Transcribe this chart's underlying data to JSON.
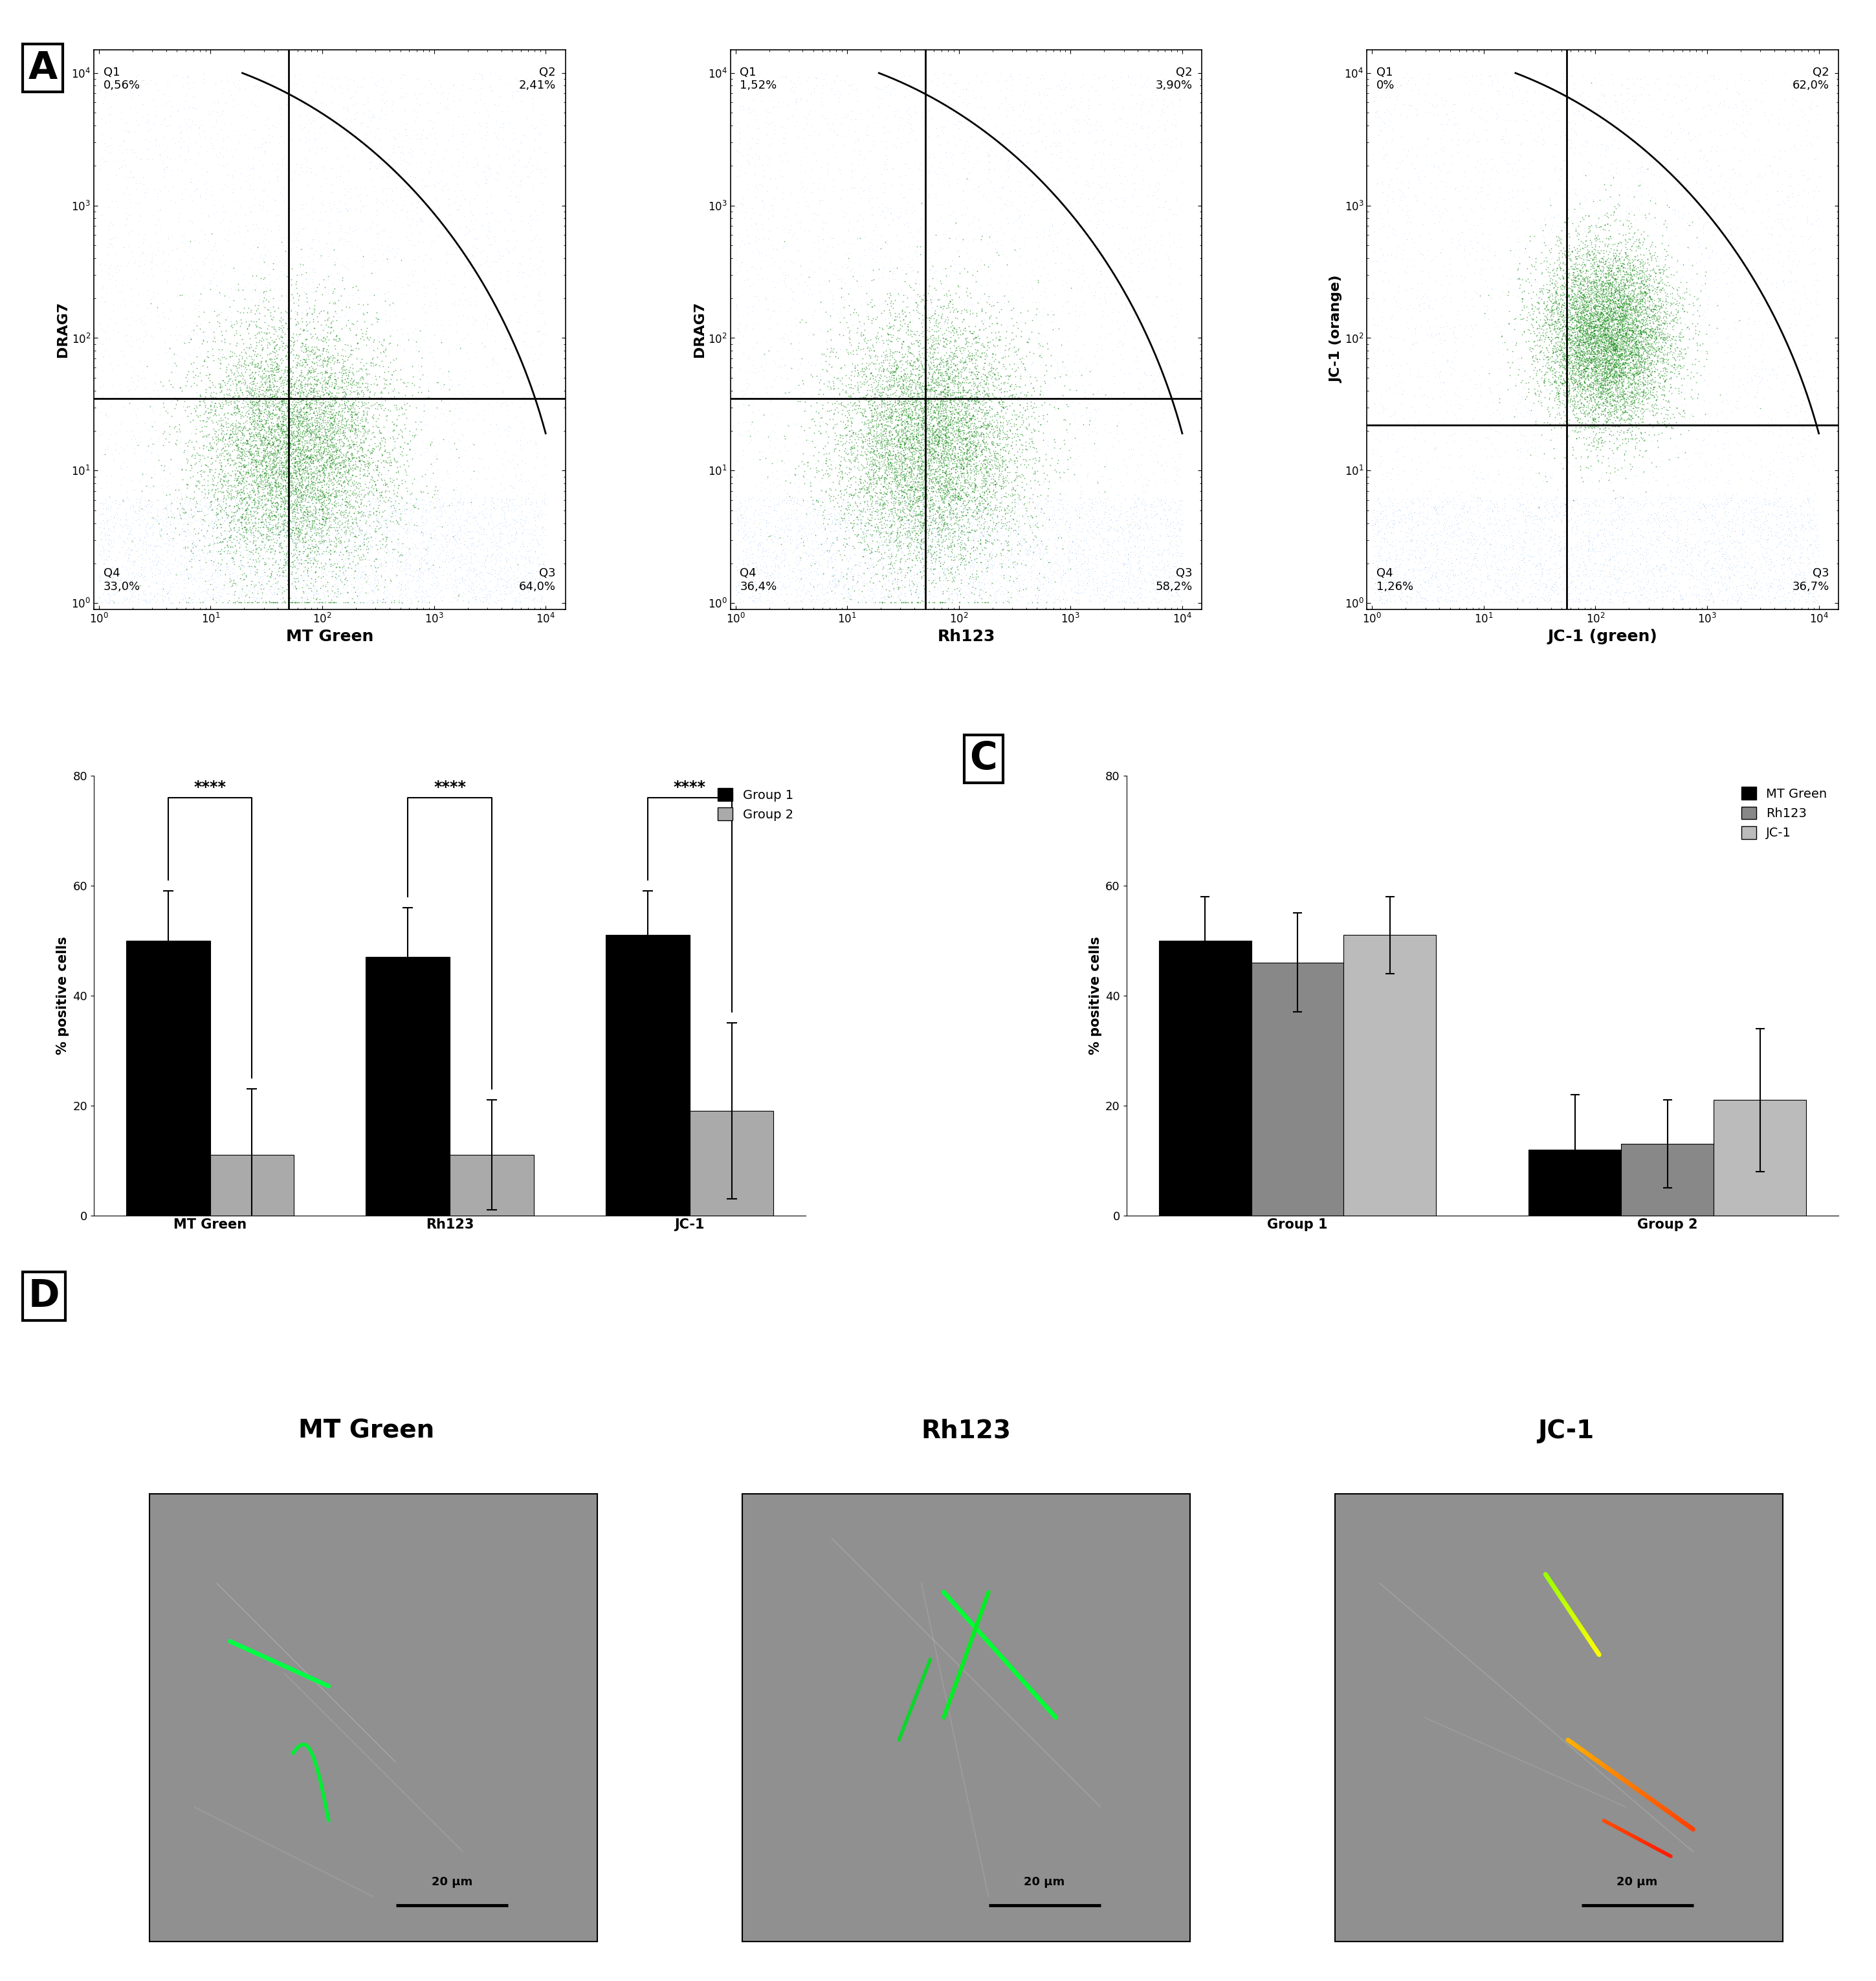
{
  "panel_A": {
    "plots": [
      {
        "xlabel": "MT Green",
        "ylabel": "DRAG7",
        "q1_label": "Q1\n0,56%",
        "q2_label": "Q2\n2,41%",
        "q3_label": "Q3\n64,0%",
        "q4_label": "Q4\n33,0%",
        "gate_vline": 50,
        "gate_hline": 35,
        "main_cluster_logx": 1.75,
        "main_cluster_logy": 1.15,
        "main_cluster_sx": 0.45,
        "main_cluster_sy": 0.5
      },
      {
        "xlabel": "Rh123",
        "ylabel": "DRAG7",
        "q1_label": "Q1\n1,52%",
        "q2_label": "Q2\n3,90%",
        "q3_label": "Q3\n58,2%",
        "q4_label": "Q4\n36,4%",
        "gate_vline": 50,
        "gate_hline": 35,
        "main_cluster_logx": 1.75,
        "main_cluster_logy": 1.2,
        "main_cluster_sx": 0.45,
        "main_cluster_sy": 0.5
      },
      {
        "xlabel": "JC-1 (green)",
        "ylabel": "JC-1 (orange)",
        "q1_label": "Q1\n0%",
        "q2_label": "Q2\n62,0%",
        "q3_label": "Q3\n36,7%",
        "q4_label": "Q4\n1,26%",
        "gate_vline": 55,
        "gate_hline": 22,
        "main_cluster_logx": 2.1,
        "main_cluster_logy": 2.0,
        "main_cluster_sx": 0.3,
        "main_cluster_sy": 0.35
      }
    ]
  },
  "panel_B": {
    "categories": [
      "MT Green",
      "Rh123",
      "JC-1"
    ],
    "group1_means": [
      50,
      47,
      51
    ],
    "group1_errors": [
      9,
      9,
      8
    ],
    "group2_means": [
      11,
      11,
      19
    ],
    "group2_errors": [
      12,
      10,
      16
    ],
    "ylabel": "% positive cells",
    "ylim": [
      0,
      80
    ],
    "sig_labels": [
      "****",
      "****",
      "****"
    ],
    "bar_width": 0.35,
    "group1_color": "#000000",
    "group2_color": "#aaaaaa"
  },
  "panel_C": {
    "categories": [
      "Group 1",
      "Group 2"
    ],
    "mt_green_means": [
      50,
      12
    ],
    "mt_green_errors": [
      8,
      10
    ],
    "rh123_means": [
      46,
      13
    ],
    "rh123_errors": [
      9,
      8
    ],
    "jc1_means": [
      51,
      21
    ],
    "jc1_errors": [
      7,
      13
    ],
    "ylabel": "% positive cells",
    "ylim": [
      0,
      80
    ],
    "bar_width": 0.25,
    "mt_green_color": "#000000",
    "rh123_color": "#888888",
    "jc1_color": "#bbbbbb"
  },
  "panel_D": {
    "titles": [
      "MT Green",
      "Rh123",
      "JC-1"
    ],
    "scale_bar_text": "20 μm",
    "bg_color": "#909090"
  }
}
